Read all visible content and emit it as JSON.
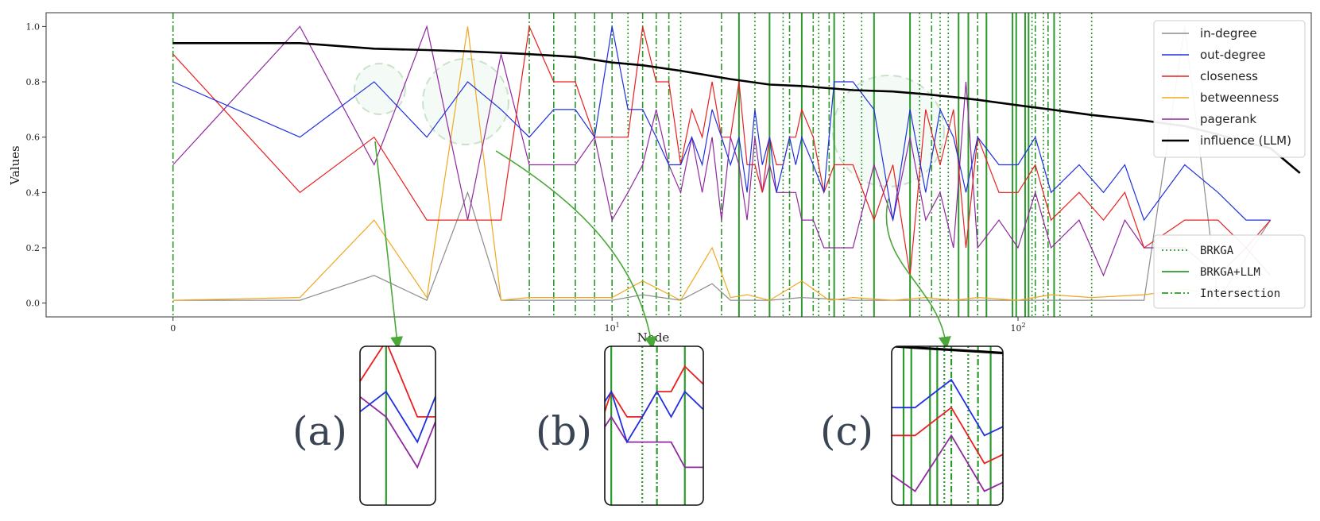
{
  "chart_data": {
    "type": "line",
    "title": "",
    "xlabel": "Node",
    "ylabel": "Values",
    "x_scale": "symlog",
    "xlim": [
      -1,
      500
    ],
    "ylim": [
      -0.05,
      1.05
    ],
    "x_ticks": [
      {
        "value": 0,
        "label": "0"
      },
      {
        "value": 10,
        "label": "10^1"
      },
      {
        "value": 100,
        "label": "10^2"
      }
    ],
    "y_ticks": [
      {
        "value": 0.0,
        "label": "0.0"
      },
      {
        "value": 0.2,
        "label": "0.2"
      },
      {
        "value": 0.4,
        "label": "0.4"
      },
      {
        "value": 0.6,
        "label": "0.6"
      },
      {
        "value": 0.8,
        "label": "0.8"
      },
      {
        "value": 1.0,
        "label": "1.0"
      }
    ],
    "grid": false,
    "legend_lines": {
      "placement": "top-right",
      "entries": [
        {
          "name": "in-degree",
          "color": "#8c8c8c"
        },
        {
          "name": "out-degree",
          "color": "#2030e0"
        },
        {
          "name": "closeness",
          "color": "#e82020"
        },
        {
          "name": "betweenness",
          "color": "#f0a820"
        },
        {
          "name": "pagerank",
          "color": "#9028a0"
        },
        {
          "name": "influence (LLM)",
          "color": "#000000"
        }
      ]
    },
    "legend_markers": {
      "placement": "lower-right",
      "entries": [
        {
          "name": "BRKGA",
          "color": "#2a9a2a",
          "style": "dotted"
        },
        {
          "name": "BRKGA+LLM",
          "color": "#2a9a2a",
          "style": "solid"
        },
        {
          "name": "Intersection",
          "color": "#2a9a2a",
          "style": "dashdot"
        }
      ]
    },
    "series": [
      {
        "name": "influence (LLM)",
        "x": [
          0,
          1,
          2,
          3,
          4,
          5,
          6,
          8,
          10,
          12,
          15,
          20,
          25,
          30,
          40,
          50,
          60,
          70,
          80,
          100,
          120,
          150,
          200,
          250,
          300,
          350,
          400,
          470
        ],
        "values": [
          0.94,
          0.94,
          0.92,
          0.915,
          0.91,
          0.905,
          0.9,
          0.89,
          0.87,
          0.86,
          0.84,
          0.81,
          0.79,
          0.785,
          0.77,
          0.765,
          0.755,
          0.745,
          0.735,
          0.715,
          0.7,
          0.68,
          0.66,
          0.64,
          0.61,
          0.58,
          0.56,
          0.47
        ]
      },
      {
        "name": "out-degree",
        "x": [
          0,
          1,
          2,
          3,
          4,
          5,
          6,
          7,
          8,
          9,
          10,
          11,
          12,
          13,
          14,
          15,
          16,
          17,
          18,
          19,
          20,
          21,
          22,
          23,
          24,
          25,
          26,
          27,
          28,
          29,
          30,
          32,
          34,
          36,
          40,
          45,
          50,
          55,
          60,
          65,
          70,
          75,
          80,
          90,
          100,
          110,
          120,
          140,
          160,
          180,
          200,
          250,
          300,
          350,
          400
        ],
        "values": [
          0.8,
          0.6,
          0.8,
          0.6,
          0.8,
          0.7,
          0.6,
          0.7,
          0.7,
          0.6,
          1.0,
          0.7,
          0.7,
          0.6,
          0.5,
          0.5,
          0.6,
          0.5,
          0.7,
          0.6,
          0.5,
          0.6,
          0.4,
          0.7,
          0.5,
          0.6,
          0.4,
          0.5,
          0.6,
          0.5,
          0.6,
          0.5,
          0.4,
          0.8,
          0.8,
          0.7,
          0.3,
          0.7,
          0.4,
          0.7,
          0.6,
          0.4,
          0.6,
          0.5,
          0.5,
          0.6,
          0.4,
          0.5,
          0.4,
          0.5,
          0.3,
          0.5,
          0.4,
          0.3,
          0.3
        ]
      },
      {
        "name": "closeness",
        "x": [
          0,
          1,
          2,
          3,
          4,
          5,
          6,
          7,
          8,
          9,
          10,
          11,
          12,
          13,
          14,
          15,
          16,
          17,
          18,
          19,
          20,
          21,
          22,
          23,
          24,
          25,
          26,
          27,
          28,
          29,
          30,
          32,
          34,
          36,
          40,
          45,
          50,
          55,
          60,
          65,
          70,
          75,
          80,
          90,
          100,
          110,
          120,
          140,
          160,
          180,
          200,
          250,
          300,
          350,
          400
        ],
        "values": [
          0.9,
          0.4,
          0.6,
          0.3,
          0.3,
          0.3,
          1.0,
          0.8,
          0.8,
          0.6,
          0.6,
          0.6,
          1.0,
          0.8,
          0.8,
          0.5,
          0.7,
          0.6,
          0.8,
          0.6,
          0.6,
          0.8,
          0.5,
          0.5,
          0.4,
          0.6,
          0.5,
          0.5,
          0.6,
          0.6,
          0.7,
          0.6,
          0.4,
          0.5,
          0.5,
          0.3,
          0.5,
          0.1,
          0.7,
          0.5,
          0.7,
          0.2,
          0.6,
          0.4,
          0.4,
          0.5,
          0.3,
          0.4,
          0.3,
          0.4,
          0.2,
          0.3,
          0.3,
          0.2,
          0.3
        ]
      },
      {
        "name": "pagerank",
        "x": [
          0,
          1,
          2,
          3,
          4,
          5,
          6,
          7,
          8,
          9,
          10,
          11,
          12,
          13,
          14,
          15,
          16,
          17,
          18,
          19,
          20,
          21,
          22,
          23,
          24,
          25,
          26,
          27,
          28,
          29,
          30,
          32,
          34,
          36,
          40,
          45,
          50,
          55,
          60,
          65,
          70,
          75,
          80,
          90,
          100,
          110,
          120,
          140,
          160,
          180,
          200,
          250,
          300,
          350,
          400
        ],
        "values": [
          0.5,
          1.0,
          0.5,
          1.0,
          0.3,
          0.9,
          0.5,
          0.5,
          0.5,
          0.6,
          0.3,
          0.4,
          0.5,
          0.7,
          0.5,
          0.4,
          0.6,
          0.4,
          0.6,
          0.3,
          0.6,
          0.5,
          0.3,
          0.6,
          0.4,
          0.5,
          0.4,
          0.4,
          0.4,
          0.4,
          0.3,
          0.3,
          0.2,
          0.2,
          0.2,
          0.5,
          0.3,
          0.6,
          0.3,
          0.4,
          0.2,
          0.8,
          0.2,
          0.3,
          0.2,
          0.4,
          0.2,
          0.3,
          0.1,
          0.3,
          0.2,
          0.2,
          0.1,
          0.2,
          0.1
        ]
      },
      {
        "name": "betweenness",
        "x": [
          0,
          1,
          2,
          3,
          4,
          5,
          6,
          8,
          10,
          12,
          15,
          18,
          20,
          22,
          25,
          30,
          35,
          40,
          50,
          60,
          70,
          80,
          100,
          120,
          150,
          200,
          250,
          300,
          400
        ],
        "values": [
          0.01,
          0.02,
          0.3,
          0.02,
          1.0,
          0.01,
          0.02,
          0.02,
          0.02,
          0.08,
          0.01,
          0.2,
          0.02,
          0.03,
          0.01,
          0.08,
          0.01,
          0.02,
          0.01,
          0.02,
          0.01,
          0.02,
          0.01,
          0.03,
          0.02,
          0.03,
          0.05,
          0.03,
          0.02
        ]
      },
      {
        "name": "in-degree",
        "x": [
          0,
          1,
          2,
          3,
          4,
          5,
          6,
          8,
          10,
          12,
          15,
          18,
          20,
          25,
          30,
          40,
          50,
          60,
          80,
          100,
          150,
          200,
          250,
          300,
          400
        ],
        "values": [
          0.01,
          0.01,
          0.1,
          0.01,
          0.4,
          0.01,
          0.01,
          0.01,
          0.01,
          0.03,
          0.01,
          0.07,
          0.01,
          0.01,
          0.02,
          0.01,
          0.01,
          0.01,
          0.01,
          0.01,
          0.01,
          0.01,
          1.0,
          0.01,
          0.3
        ]
      }
    ],
    "vlines": {
      "BRKGA": [
        11,
        15,
        23,
        27,
        33,
        38,
        42,
        58,
        65,
        68,
        108,
        115,
        126,
        150
      ],
      "BRKGA+LLM": [
        21,
        25,
        30,
        36,
        45,
        55,
        72,
        76,
        84,
        97,
        99,
        104,
        106,
        122
      ],
      "Intersection": [
        0,
        6,
        7,
        8,
        9,
        10,
        12,
        13,
        14,
        19,
        28,
        32,
        35,
        62,
        80,
        110,
        118
      ]
    },
    "zoom_panels": [
      {
        "label": "(a)"
      },
      {
        "label": "(b)"
      },
      {
        "label": "(c)"
      }
    ]
  }
}
